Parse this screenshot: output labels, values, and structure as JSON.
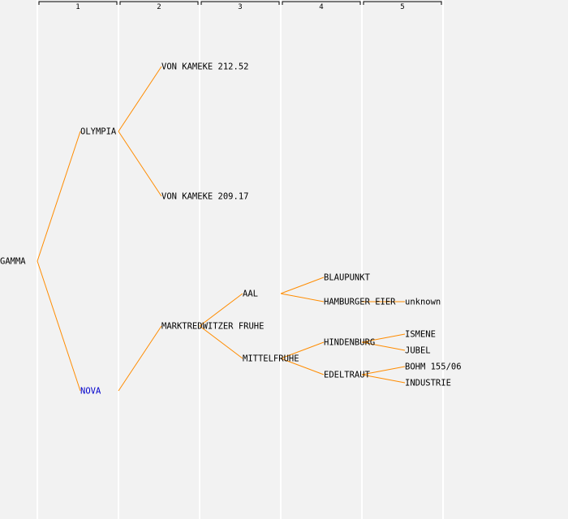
{
  "columns": [
    "1",
    "2",
    "3",
    "4",
    "5"
  ],
  "colors": {
    "edge": "#ff8c00",
    "highlight": "#0000cc",
    "text": "#000000",
    "background": "#f2f2f2"
  },
  "tree": {
    "id": "gamma",
    "label": "GAMMA",
    "children": [
      {
        "id": "olympia",
        "label": "OLYMPIA",
        "children": [
          {
            "id": "von-kameke-1",
            "label": "VON KAMEKE 212.52"
          },
          {
            "id": "von-kameke-2",
            "label": "VON KAMEKE 209.17"
          }
        ]
      },
      {
        "id": "nova",
        "label": "NOVA",
        "highlight": true,
        "children": [
          {
            "id": "marktredwitzer-fruhe",
            "label": "MARKTREDWITZER FRUHE",
            "children": [
              {
                "id": "aal",
                "label": "AAL",
                "children": [
                  {
                    "id": "blaupunkt",
                    "label": "BLAUPUNKT"
                  },
                  {
                    "id": "hamburger-eier",
                    "label": "HAMBURGER EIER",
                    "children": [
                      {
                        "id": "unknown",
                        "label": "unknown"
                      }
                    ]
                  }
                ]
              },
              {
                "id": "mittelfruhe",
                "label": "MITTELFRUHE",
                "children": [
                  {
                    "id": "hindenburg",
                    "label": "HINDENBURG",
                    "children": [
                      {
                        "id": "ismene",
                        "label": "ISMENE"
                      },
                      {
                        "id": "jubel",
                        "label": "JUBEL"
                      }
                    ]
                  },
                  {
                    "id": "edeltraut",
                    "label": "EDELTRAUT",
                    "children": [
                      {
                        "id": "bohm",
                        "label": "BOHM 155/06"
                      },
                      {
                        "id": "industrie",
                        "label": "INDUSTRIE"
                      }
                    ]
                  }
                ]
              }
            ]
          }
        ]
      }
    ]
  }
}
